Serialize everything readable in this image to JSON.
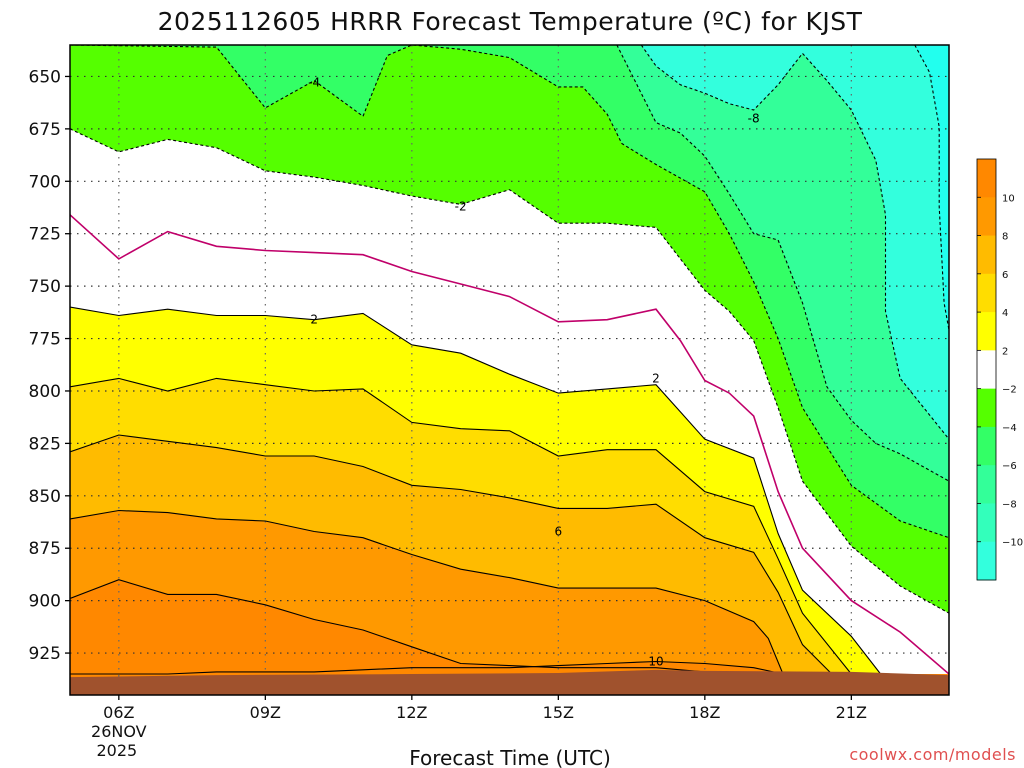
{
  "chart_data": {
    "type": "heatmap",
    "title": "2025112605 HRRR Forecast Temperature (ºC) for KJST",
    "xlabel": "Forecast Time (UTC)",
    "ylabel": "",
    "credit": "coolwx.com/models",
    "x_range_hours_utc": [
      5,
      23
    ],
    "y_range_hpa": [
      635,
      945
    ],
    "y_axis_inverted": true,
    "grid": true,
    "x_ticks": [
      {
        "hour": 6,
        "label": "06Z",
        "date_label": "26NOV",
        "year_label": "2025"
      },
      {
        "hour": 9,
        "label": "09Z"
      },
      {
        "hour": 12,
        "label": "12Z"
      },
      {
        "hour": 15,
        "label": "15Z"
      },
      {
        "hour": 18,
        "label": "18Z"
      },
      {
        "hour": 21,
        "label": "21Z"
      }
    ],
    "y_ticks": [
      650,
      675,
      700,
      725,
      750,
      775,
      800,
      825,
      850,
      875,
      900,
      925
    ],
    "colorbar": {
      "placement": "right",
      "levels": [
        -12,
        -10,
        -8,
        -6,
        -4,
        -2,
        2,
        4,
        6,
        8,
        10,
        12
      ],
      "labels": [
        "10",
        "8",
        "6",
        "4",
        "2",
        "−2",
        "−4",
        "−6",
        "−8",
        "−10"
      ],
      "colors": [
        "#33ffdd",
        "#33ffbb",
        "#33ff99",
        "#33ff66",
        "#55ff00",
        "#ffffff",
        "#ffff00",
        "#ffdd00",
        "#ffbb00",
        "#ff9900",
        "#ff8800"
      ]
    },
    "bands": [
      {
        "name": "8 to 10",
        "color": "#ff8800"
      },
      {
        "name": "6 to 8",
        "color": "#ff9900"
      },
      {
        "name": "4 to 6",
        "color": "#ffbb00"
      },
      {
        "name": "2 to 4",
        "color": "#ffdd00"
      },
      {
        "name": "0 to 2",
        "color": "#ffff00"
      },
      {
        "name": "-2 to 0",
        "color": "#ffffff"
      },
      {
        "name": "-4 to -2",
        "color": "#55ff00"
      },
      {
        "name": "-6 to -4",
        "color": "#33ff66"
      },
      {
        "name": "-8 to -6",
        "color": "#33ff99"
      },
      {
        "name": "< -8",
        "color": "#33ffdd"
      }
    ],
    "ground_color": "#a0522d",
    "contours": [
      {
        "level": 10,
        "points": [
          [
            5,
            935
          ],
          [
            6,
            935
          ],
          [
            7,
            935
          ],
          [
            8,
            934
          ],
          [
            9,
            934
          ],
          [
            10,
            934
          ],
          [
            11,
            933
          ],
          [
            12,
            932
          ],
          [
            13,
            932
          ],
          [
            14,
            932
          ],
          [
            15,
            931
          ],
          [
            16,
            930
          ],
          [
            17,
            929
          ],
          [
            18,
            930
          ],
          [
            19,
            932
          ],
          [
            19.6,
            935
          ]
        ],
        "label": "10",
        "label_at": [
          17,
          929
        ]
      },
      {
        "level": 8,
        "points": [
          [
            5,
            899
          ],
          [
            6,
            890
          ],
          [
            7,
            897
          ],
          [
            8,
            897
          ],
          [
            9,
            902
          ],
          [
            10,
            909
          ],
          [
            11,
            914
          ],
          [
            12,
            922
          ],
          [
            13,
            930
          ],
          [
            14,
            931
          ],
          [
            15,
            932
          ],
          [
            16,
            932
          ],
          [
            17,
            932
          ],
          [
            18,
            934
          ],
          [
            19,
            935
          ]
        ],
        "label": null
      },
      {
        "level": 6,
        "points": [
          [
            5,
            861
          ],
          [
            6,
            857
          ],
          [
            7,
            858
          ],
          [
            8,
            861
          ],
          [
            9,
            862
          ],
          [
            10,
            867
          ],
          [
            11,
            870
          ],
          [
            12,
            878
          ],
          [
            13,
            885
          ],
          [
            14,
            889
          ],
          [
            15,
            894
          ],
          [
            16,
            894
          ],
          [
            17,
            894
          ],
          [
            18,
            900
          ],
          [
            19,
            910
          ],
          [
            19.3,
            918
          ],
          [
            19.6,
            935
          ]
        ],
        "label": "6",
        "label_at": [
          15,
          867
        ]
      },
      {
        "level": 4,
        "points": [
          [
            5,
            829
          ],
          [
            6,
            821
          ],
          [
            7,
            824
          ],
          [
            8,
            827
          ],
          [
            9,
            831
          ],
          [
            10,
            831
          ],
          [
            11,
            836
          ],
          [
            12,
            845
          ],
          [
            13,
            847
          ],
          [
            14,
            851
          ],
          [
            15,
            856
          ],
          [
            16,
            856
          ],
          [
            17,
            854
          ],
          [
            18,
            870
          ],
          [
            19,
            877
          ],
          [
            19.5,
            896
          ],
          [
            20,
            921
          ],
          [
            20.6,
            935
          ]
        ],
        "label": null
      },
      {
        "level": 2,
        "points": [
          [
            5,
            798
          ],
          [
            6,
            794
          ],
          [
            7,
            800
          ],
          [
            8,
            794
          ],
          [
            9,
            797
          ],
          [
            10,
            800
          ],
          [
            11,
            799
          ],
          [
            12,
            815
          ],
          [
            13,
            818
          ],
          [
            14,
            819
          ],
          [
            15,
            831
          ],
          [
            16,
            828
          ],
          [
            17,
            828
          ],
          [
            18,
            848
          ],
          [
            19,
            855
          ],
          [
            19.5,
            880
          ],
          [
            20,
            906
          ],
          [
            21,
            935
          ]
        ],
        "label": "2",
        "label_at": [
          17,
          794
        ]
      },
      {
        "level": 2,
        "points": [
          [
            5,
            760
          ],
          [
            6,
            764
          ],
          [
            7,
            761
          ],
          [
            8,
            764
          ],
          [
            9,
            764
          ],
          [
            10,
            766
          ],
          [
            11,
            763
          ],
          [
            12,
            778
          ],
          [
            13,
            782
          ],
          [
            14,
            792
          ],
          [
            15,
            801
          ],
          [
            16,
            799
          ],
          [
            17,
            797
          ],
          [
            17.5,
            810
          ],
          [
            18,
            823
          ],
          [
            19,
            832
          ],
          [
            19.5,
            868
          ],
          [
            20,
            895
          ],
          [
            21,
            917
          ],
          [
            21.6,
            935
          ]
        ],
        "label": "2",
        "label_at": [
          10,
          766
        ]
      },
      {
        "level": 0,
        "points": [
          [
            5,
            716
          ],
          [
            6,
            737
          ],
          [
            7,
            724
          ],
          [
            8,
            731
          ],
          [
            9,
            733
          ],
          [
            10,
            734
          ],
          [
            11,
            735
          ],
          [
            12,
            743
          ],
          [
            13,
            749
          ],
          [
            14,
            755
          ],
          [
            15,
            767
          ],
          [
            16,
            766
          ],
          [
            17,
            761
          ],
          [
            17.5,
            776
          ],
          [
            18,
            795
          ],
          [
            18.5,
            801
          ],
          [
            19,
            812
          ],
          [
            19.5,
            848
          ],
          [
            20,
            875
          ],
          [
            21,
            900
          ],
          [
            22,
            915
          ],
          [
            23,
            935
          ]
        ],
        "label": null
      },
      {
        "level": -2,
        "points": [
          [
            5,
            675
          ],
          [
            6,
            686
          ],
          [
            7,
            680
          ],
          [
            8,
            684
          ],
          [
            9,
            695
          ],
          [
            10,
            698
          ],
          [
            11,
            702
          ],
          [
            12,
            707
          ],
          [
            13,
            711
          ],
          [
            14,
            704
          ],
          [
            15,
            720
          ],
          [
            16,
            720
          ],
          [
            17,
            722
          ],
          [
            17.5,
            737
          ],
          [
            18,
            752
          ],
          [
            18.5,
            762
          ],
          [
            19,
            776
          ],
          [
            19.5,
            808
          ],
          [
            20,
            843
          ],
          [
            21,
            874
          ],
          [
            22,
            893
          ],
          [
            23,
            906
          ]
        ],
        "label": "-2",
        "label_at": [
          13,
          712
        ]
      },
      {
        "level": -4,
        "points": [
          [
            5,
            635
          ],
          [
            8,
            636
          ],
          [
            9,
            665
          ],
          [
            10,
            652
          ],
          [
            11,
            669
          ],
          [
            11.5,
            640
          ],
          [
            12,
            635
          ],
          [
            13,
            637
          ],
          [
            14,
            641
          ],
          [
            15,
            655
          ],
          [
            15.5,
            655
          ],
          [
            16,
            668
          ],
          [
            16.3,
            682
          ],
          [
            17,
            692
          ],
          [
            18,
            705
          ],
          [
            18.5,
            725
          ],
          [
            19,
            748
          ],
          [
            19.5,
            775
          ],
          [
            20,
            808
          ],
          [
            21,
            845
          ],
          [
            22,
            862
          ],
          [
            23,
            870
          ]
        ],
        "label": "-4",
        "label_at": [
          10,
          653
        ]
      },
      {
        "level": -6,
        "points": [
          [
            16.2,
            635
          ],
          [
            17,
            672
          ],
          [
            17.5,
            677
          ],
          [
            18,
            688
          ],
          [
            18.5,
            706
          ],
          [
            19,
            725
          ],
          [
            19.5,
            728
          ],
          [
            20,
            758
          ],
          [
            20.5,
            798
          ],
          [
            21,
            814
          ],
          [
            21.5,
            825
          ],
          [
            22,
            830
          ],
          [
            23,
            843
          ]
        ],
        "label": null
      },
      {
        "level": -8,
        "points": [
          [
            16.7,
            635
          ],
          [
            17,
            645
          ],
          [
            17.5,
            654
          ],
          [
            18,
            658
          ],
          [
            18.5,
            663
          ],
          [
            19,
            666
          ],
          [
            19.5,
            654
          ],
          [
            20,
            639
          ],
          [
            20.5,
            652
          ],
          [
            21,
            666
          ],
          [
            21.5,
            690
          ],
          [
            21.7,
            716
          ],
          [
            21.7,
            762
          ],
          [
            22,
            794
          ],
          [
            23,
            823
          ]
        ],
        "label": "-8",
        "label_at": [
          19,
          670
        ]
      },
      {
        "level": -10,
        "points": [
          [
            22.3,
            635
          ],
          [
            22.6,
            648
          ],
          [
            22.8,
            674
          ],
          [
            22.8,
            712
          ],
          [
            22.9,
            758
          ],
          [
            23,
            771
          ]
        ],
        "label": null
      }
    ]
  }
}
